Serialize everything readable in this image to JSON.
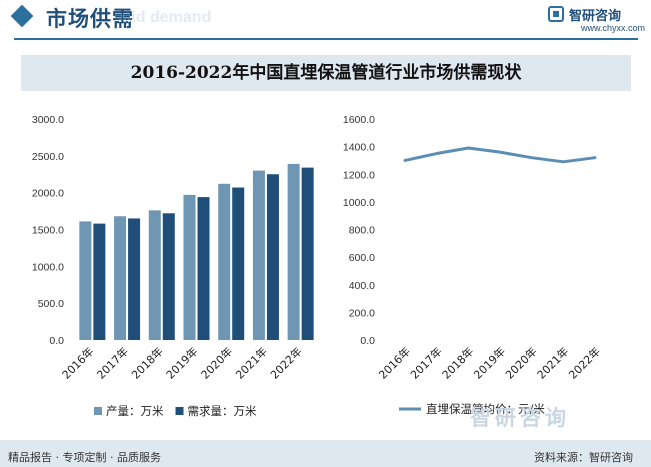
{
  "header": {
    "title": "市场供需",
    "watermark": "...id demand"
  },
  "logo": {
    "name": "智研咨询",
    "url": "www.chyxx.com"
  },
  "banner": {
    "title": "2016-2022年中国直埋保温管道行业市场供需现状"
  },
  "chart_data": [
    {
      "type": "bar",
      "categories": [
        "2016年",
        "2017年",
        "2018年",
        "2019年",
        "2020年",
        "2021年",
        "2022年"
      ],
      "series": [
        {
          "name": "产量：万米",
          "values": [
            1610,
            1680,
            1760,
            1970,
            2120,
            2300,
            2390
          ],
          "color": "#6f96b3"
        },
        {
          "name": "需求量：万米",
          "values": [
            1580,
            1650,
            1720,
            1940,
            2070,
            2250,
            2340
          ],
          "color": "#1f4e79"
        }
      ],
      "y_ticks": [
        "0.0",
        "500.0",
        "1000.0",
        "1500.0",
        "2000.0",
        "2500.0",
        "3000.0"
      ],
      "ylim": [
        0,
        3000
      ],
      "legend_position": "bottom"
    },
    {
      "type": "line",
      "categories": [
        "2016年",
        "2017年",
        "2018年",
        "2019年",
        "2020年",
        "2021年",
        "2022年"
      ],
      "series": [
        {
          "name": "直埋保温管均价：元/米",
          "values": [
            1300,
            1350,
            1390,
            1360,
            1320,
            1290,
            1320
          ],
          "color": "#5b8db5"
        }
      ],
      "y_ticks": [
        "0.0",
        "200.0",
        "400.0",
        "600.0",
        "800.0",
        "1000.0",
        "1200.0",
        "1400.0",
        "1600.0"
      ],
      "ylim": [
        0,
        1600
      ],
      "legend_position": "bottom"
    }
  ],
  "footer": {
    "left_text": "精品报告 · 专项定制 · 品质服务",
    "right_text": "资料来源：智研咨询",
    "logo_text": "智研咨询"
  }
}
